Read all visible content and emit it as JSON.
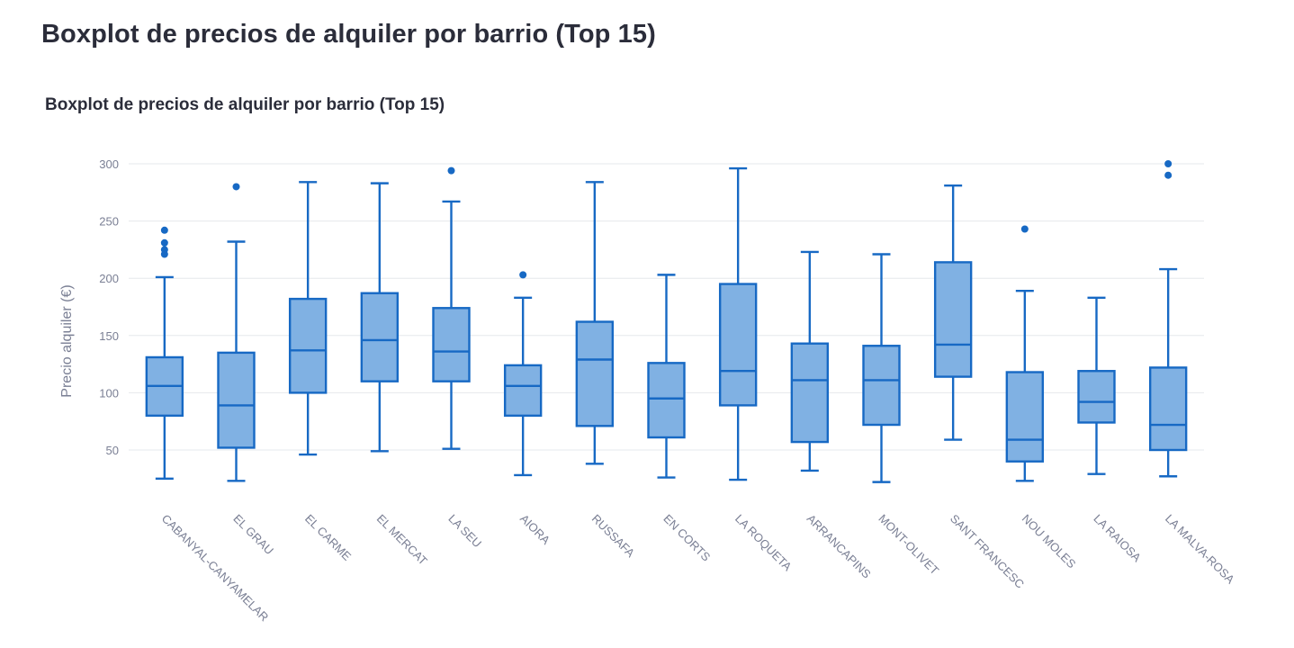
{
  "page": {
    "title": "Boxplot de precios de alquiler por barrio (Top 15)"
  },
  "colors": {
    "box_fill": "#80b1e3",
    "box_stroke": "#1769c4",
    "grid": "#e6e8ec",
    "text": "#7a7f94",
    "title": "#2b2d3a"
  },
  "chart_data": {
    "type": "box",
    "title": "Boxplot de precios de alquiler por barrio (Top 15)",
    "xlabel": "",
    "ylabel": "Precio alquiler (€)",
    "ylim": [
      0,
      310
    ],
    "yticks": [
      50,
      100,
      150,
      200,
      250,
      300
    ],
    "grid": true,
    "categories": [
      "CABANYAL-CANYAMELAR",
      "EL GRAU",
      "EL CARME",
      "EL MERCAT",
      "LA SEU",
      "AIORA",
      "RUSSAFA",
      "EN CORTS",
      "LA ROQUETA",
      "ARRANCAPINS",
      "MONT-OLIVET",
      "SANT FRANCESC",
      "NOU MOLES",
      "LA RAIOSA",
      "LA MALVA-ROSA"
    ],
    "boxes": [
      {
        "min": 25,
        "q1": 80,
        "median": 106,
        "q3": 131,
        "max": 201,
        "outliers": [
          242,
          231,
          225,
          221
        ]
      },
      {
        "min": 23,
        "q1": 52,
        "median": 89,
        "q3": 135,
        "max": 232,
        "outliers": [
          280
        ]
      },
      {
        "min": 46,
        "q1": 100,
        "median": 137,
        "q3": 182,
        "max": 284,
        "outliers": []
      },
      {
        "min": 49,
        "q1": 110,
        "median": 146,
        "q3": 187,
        "max": 283,
        "outliers": []
      },
      {
        "min": 51,
        "q1": 110,
        "median": 136,
        "q3": 174,
        "max": 267,
        "outliers": [
          294
        ]
      },
      {
        "min": 28,
        "q1": 80,
        "median": 106,
        "q3": 124,
        "max": 183,
        "outliers": [
          203
        ]
      },
      {
        "min": 38,
        "q1": 71,
        "median": 129,
        "q3": 162,
        "max": 284,
        "outliers": []
      },
      {
        "min": 26,
        "q1": 61,
        "median": 95,
        "q3": 126,
        "max": 203,
        "outliers": []
      },
      {
        "min": 24,
        "q1": 89,
        "median": 119,
        "q3": 195,
        "max": 296,
        "outliers": []
      },
      {
        "min": 32,
        "q1": 57,
        "median": 111,
        "q3": 143,
        "max": 223,
        "outliers": []
      },
      {
        "min": 22,
        "q1": 72,
        "median": 111,
        "q3": 141,
        "max": 221,
        "outliers": []
      },
      {
        "min": 59,
        "q1": 114,
        "median": 142,
        "q3": 214,
        "max": 281,
        "outliers": []
      },
      {
        "min": 23,
        "q1": 40,
        "median": 59,
        "q3": 118,
        "max": 189,
        "outliers": [
          243
        ]
      },
      {
        "min": 29,
        "q1": 74,
        "median": 92,
        "q3": 119,
        "max": 183,
        "outliers": []
      },
      {
        "min": 27,
        "q1": 50,
        "median": 72,
        "q3": 122,
        "max": 208,
        "outliers": [
          300,
          290
        ]
      }
    ]
  }
}
